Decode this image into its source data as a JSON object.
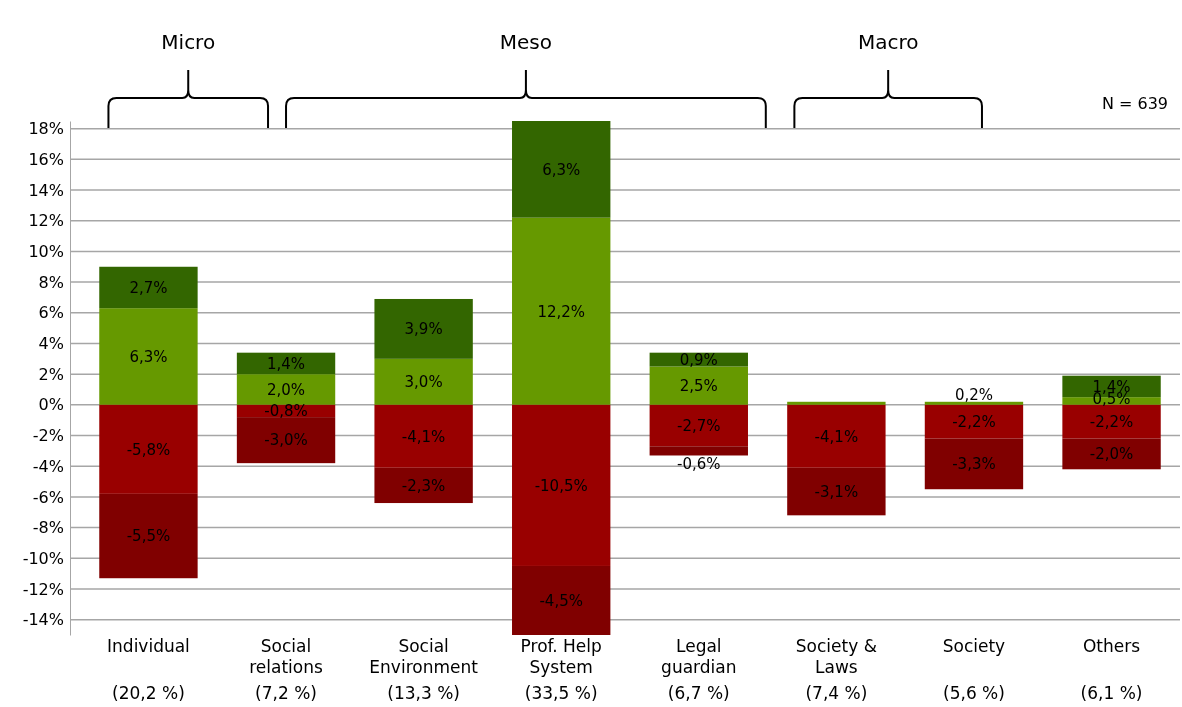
{
  "chart_data": {
    "type": "bar",
    "stacked": true,
    "categories": [
      "Individual\n(20,2 %)",
      "Social\nrelations\n(7,2 %)",
      "Social\nEnvironment\n(13,3 %)",
      "Prof. Help\nSystem\n(33,5 %)",
      "Legal\nguardian\n(6,7 %)",
      "Society &\nLaws\n(7,4 %)",
      "Society\n(5,6 %)",
      "Others\n(6,1 %)"
    ],
    "series": [
      {
        "color": "#669900",
        "values": [
          6.3,
          2.0,
          3.0,
          12.2,
          2.5,
          0.2,
          0.2,
          0.5
        ],
        "value_labels": [
          "6,3%",
          "2,0%",
          "3,0%",
          "12,2%",
          "2,5%",
          null,
          "0,2%",
          "0,5%"
        ]
      },
      {
        "color": "#336600",
        "values": [
          2.7,
          1.4,
          3.9,
          6.3,
          0.9,
          null,
          null,
          1.4
        ],
        "value_labels": [
          "2,7%",
          "1,4%",
          "3,9%",
          "6,3%",
          "0,9%",
          null,
          null,
          "1,4%"
        ]
      },
      {
        "color": "#990000",
        "values": [
          -5.8,
          -0.8,
          -4.1,
          -10.5,
          -2.7,
          -4.1,
          -2.2,
          -2.2
        ],
        "value_labels": [
          "-5,8%",
          "-0,8%",
          "-4,1%",
          "-10,5%",
          "-2,7%",
          "-4,1%",
          "-2,2%",
          "-2,2%"
        ]
      },
      {
        "color": "#800000",
        "values": [
          -5.5,
          -3.0,
          -2.3,
          -4.5,
          -0.6,
          -3.1,
          -3.3,
          -2.0
        ],
        "value_labels": [
          "-5,5%",
          "-3,0%",
          "-2,3%",
          "-4,5%",
          "-0,6%",
          "-3,1%",
          "-3,3%",
          "-2,0%"
        ]
      }
    ],
    "ylim": [
      -15,
      18.5
    ],
    "yticks": [
      {
        "value": -14,
        "label": "-14%"
      },
      {
        "value": -12,
        "label": "-12%"
      },
      {
        "value": -10,
        "label": "-10%"
      },
      {
        "value": -8,
        "label": "-8%"
      },
      {
        "value": -6,
        "label": "-6%"
      },
      {
        "value": -4,
        "label": "-4%"
      },
      {
        "value": -2,
        "label": "-2%"
      },
      {
        "value": 0,
        "label": "0%"
      },
      {
        "value": 2,
        "label": "2%"
      },
      {
        "value": 4,
        "label": "4%"
      },
      {
        "value": 6,
        "label": "6%"
      },
      {
        "value": 8,
        "label": "8%"
      },
      {
        "value": 10,
        "label": "10%"
      },
      {
        "value": 12,
        "label": "12%"
      },
      {
        "value": 14,
        "label": "14%"
      },
      {
        "value": 16,
        "label": "16%"
      },
      {
        "value": 18,
        "label": "18%"
      }
    ],
    "grid": "y",
    "annotations": [
      "Micro",
      "Meso",
      "Macro",
      "N = 639"
    ]
  }
}
